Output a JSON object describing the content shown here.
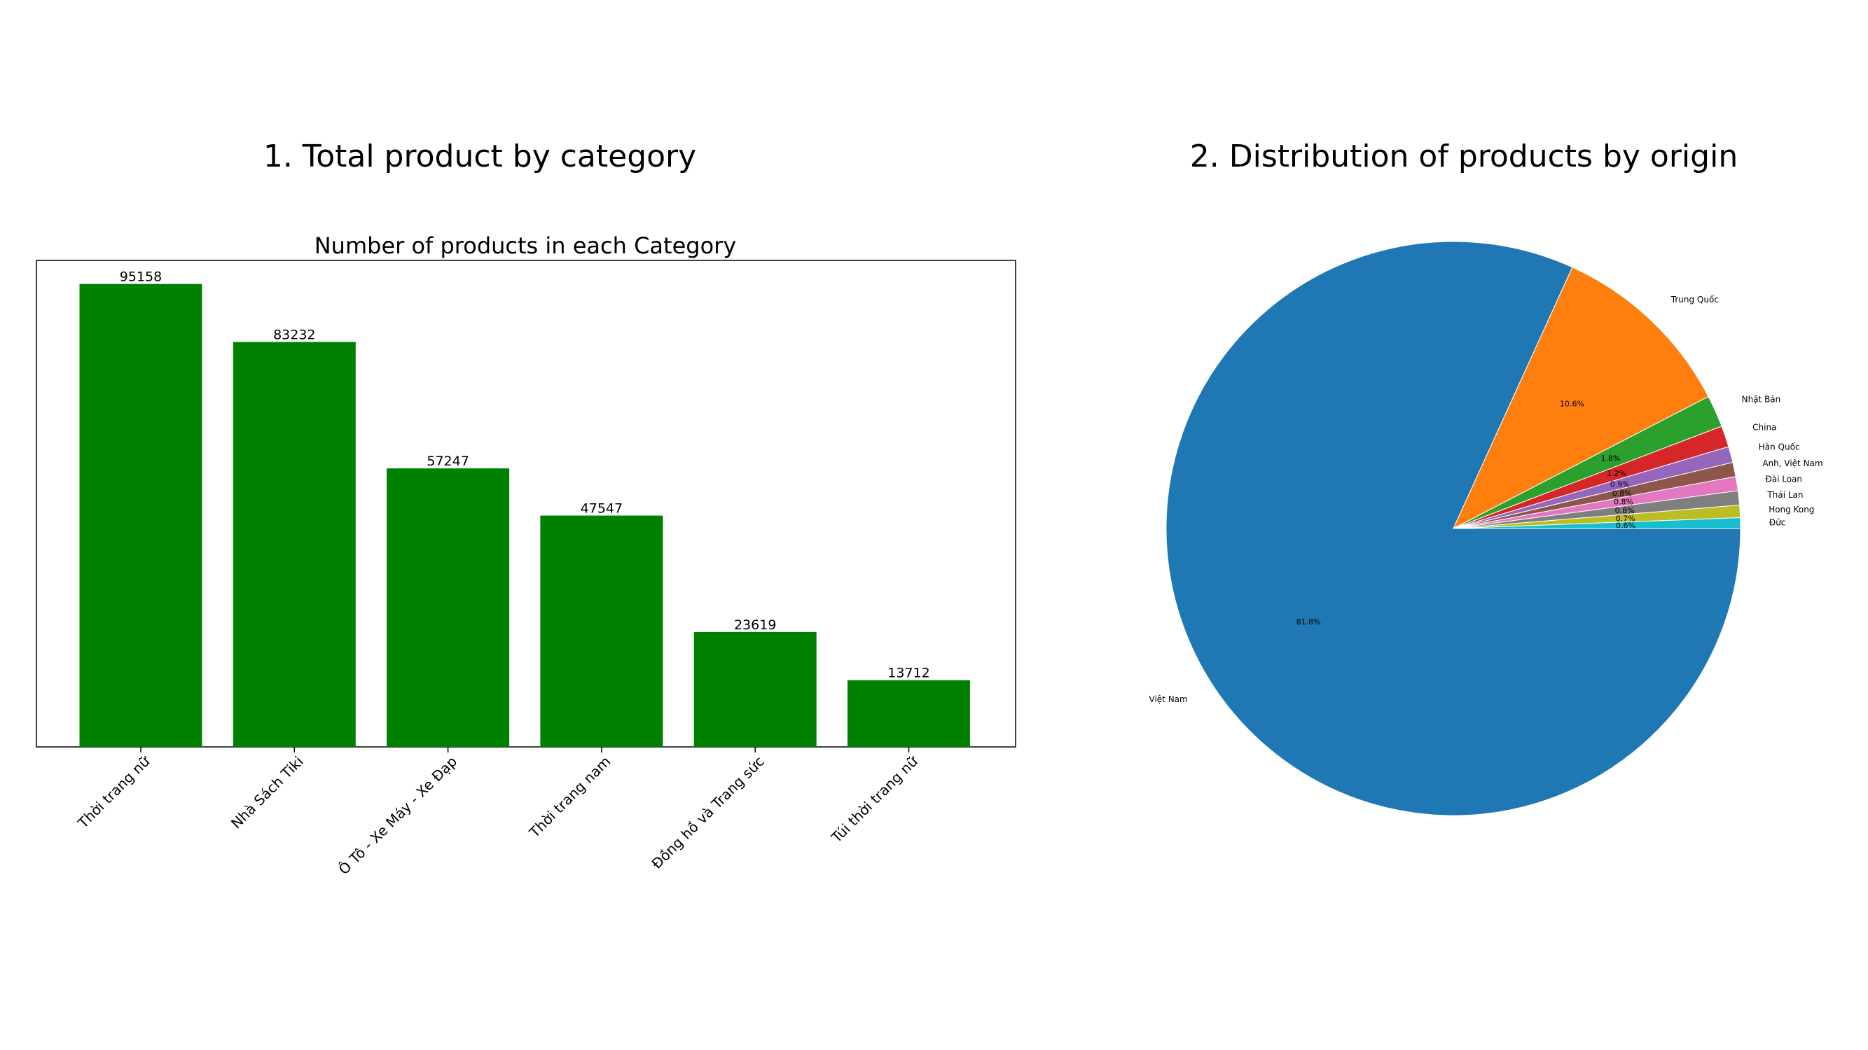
{
  "slide": {
    "left_heading": "1. Total product by category",
    "right_heading": "2. Distribution of products by origin"
  },
  "colors": {
    "bar": "#008000",
    "pie": [
      "#1f77b4",
      "#ff7f0e",
      "#2ca02c",
      "#d62728",
      "#9467bd",
      "#8c564b",
      "#e377c2",
      "#7f7f7f",
      "#bcbd22",
      "#17becf"
    ]
  },
  "chart_data": [
    {
      "type": "bar",
      "title": "Number of products in each Category",
      "categories": [
        "Thời trang nữ",
        "Nhà Sách Tiki",
        "Ô Tô - Xe Máy - Xe Đạp",
        "Thời trang nam",
        "Đồng hồ và Trang sức",
        "Túi thời trang nữ"
      ],
      "values": [
        95158,
        83232,
        57247,
        47547,
        23619,
        13712
      ],
      "data_labels": [
        "95158",
        "83232",
        "57247",
        "47547",
        "23619",
        "13712"
      ],
      "ylim": [
        0,
        100000
      ],
      "xlabel": "",
      "ylabel": "",
      "grid": false
    },
    {
      "type": "pie",
      "labels": [
        "Việt Nam",
        "Trung Quốc",
        "Nhật Bản",
        "China",
        "Hàn Quốc",
        "Anh, Việt Nam",
        "Đài Loan",
        "Thái Lan",
        "Hong Kong",
        "Đức"
      ],
      "values": [
        81.8,
        10.6,
        1.8,
        1.2,
        0.9,
        0.8,
        0.8,
        0.8,
        0.7,
        0.6
      ],
      "pct_labels": [
        "81.8%",
        "10.6%",
        "1.8%",
        "1.2%",
        "0.9%",
        "0.8%",
        "0.8%",
        "0.8%",
        "0.7%",
        "0.6%"
      ],
      "start_angle_deg": 0,
      "direction": "clockwise"
    }
  ]
}
